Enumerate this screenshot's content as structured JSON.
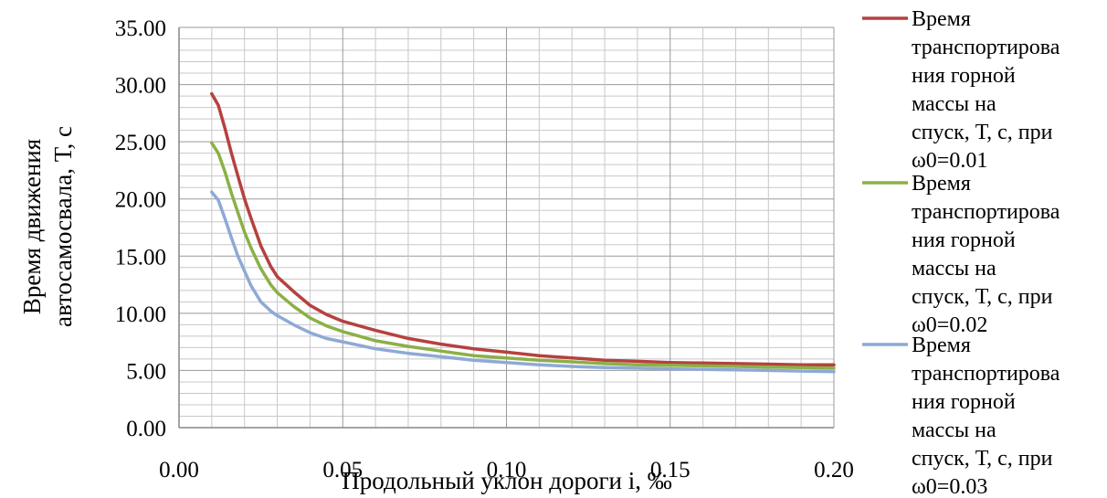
{
  "chart_data": {
    "type": "line",
    "xlabel": "Продольный уклон дороги i, ‰",
    "ylabel_lines": [
      "Время движения",
      "автосамосвала, Т, с"
    ],
    "xlim": [
      0,
      0.2
    ],
    "ylim": [
      0,
      35
    ],
    "x_ticks": [
      "0.00",
      "0.05",
      "0.10",
      "0.15",
      "0.20"
    ],
    "y_ticks": [
      "0.00",
      "5.00",
      "10.00",
      "15.00",
      "20.00",
      "25.00",
      "30.00",
      "35.00"
    ],
    "grid": true,
    "legend_position": "right",
    "x": [
      0.01,
      0.012,
      0.014,
      0.016,
      0.018,
      0.02,
      0.022,
      0.025,
      0.028,
      0.03,
      0.035,
      0.04,
      0.045,
      0.05,
      0.06,
      0.07,
      0.08,
      0.09,
      0.1,
      0.11,
      0.12,
      0.13,
      0.14,
      0.15,
      0.16,
      0.17,
      0.18,
      0.19,
      0.2
    ],
    "series": [
      {
        "name": "Время транспортирования горной массы на спуск, Т, с, при ω0=0.01",
        "legend_lines": [
          "Время",
          "транспортирова",
          "ния горной",
          "массы на",
          "спуск, Т, с, при",
          "ω0=0.01"
        ],
        "color": "#b5413e",
        "values": [
          29.2,
          28.2,
          26.2,
          24.0,
          22.0,
          20.0,
          18.3,
          15.9,
          14.1,
          13.2,
          11.9,
          10.7,
          9.9,
          9.3,
          8.5,
          7.8,
          7.3,
          6.9,
          6.6,
          6.3,
          6.1,
          5.9,
          5.8,
          5.7,
          5.65,
          5.6,
          5.55,
          5.5,
          5.5
        ]
      },
      {
        "name": "Время транспортирования горной массы на спуск, Т, с, при ω0=0.02",
        "legend_lines": [
          "Время",
          "транспортирова",
          "ния горной",
          "массы на",
          "спуск, Т, с, при",
          "ω0=0.02"
        ],
        "color": "#8bb046",
        "values": [
          24.9,
          24.0,
          22.4,
          20.5,
          18.8,
          17.1,
          15.7,
          13.9,
          12.5,
          11.8,
          10.6,
          9.6,
          8.9,
          8.4,
          7.6,
          7.1,
          6.7,
          6.3,
          6.1,
          5.9,
          5.75,
          5.6,
          5.5,
          5.45,
          5.4,
          5.35,
          5.3,
          5.25,
          5.2
        ]
      },
      {
        "name": "Время транспортирования горной массы на спуск, Т, с, при ω0=0.03",
        "legend_lines": [
          "Время",
          "транспортирова",
          "ния горной",
          "массы на",
          "спуск, Т, с, при",
          "ω0=0.03"
        ],
        "color": "#8ea9d6",
        "values": [
          20.6,
          19.9,
          18.3,
          16.6,
          15.0,
          13.7,
          12.4,
          11.0,
          10.2,
          9.8,
          9.0,
          8.3,
          7.8,
          7.5,
          6.9,
          6.5,
          6.2,
          5.9,
          5.7,
          5.5,
          5.35,
          5.25,
          5.2,
          5.15,
          5.1,
          5.05,
          5.0,
          4.95,
          4.9
        ]
      }
    ]
  }
}
